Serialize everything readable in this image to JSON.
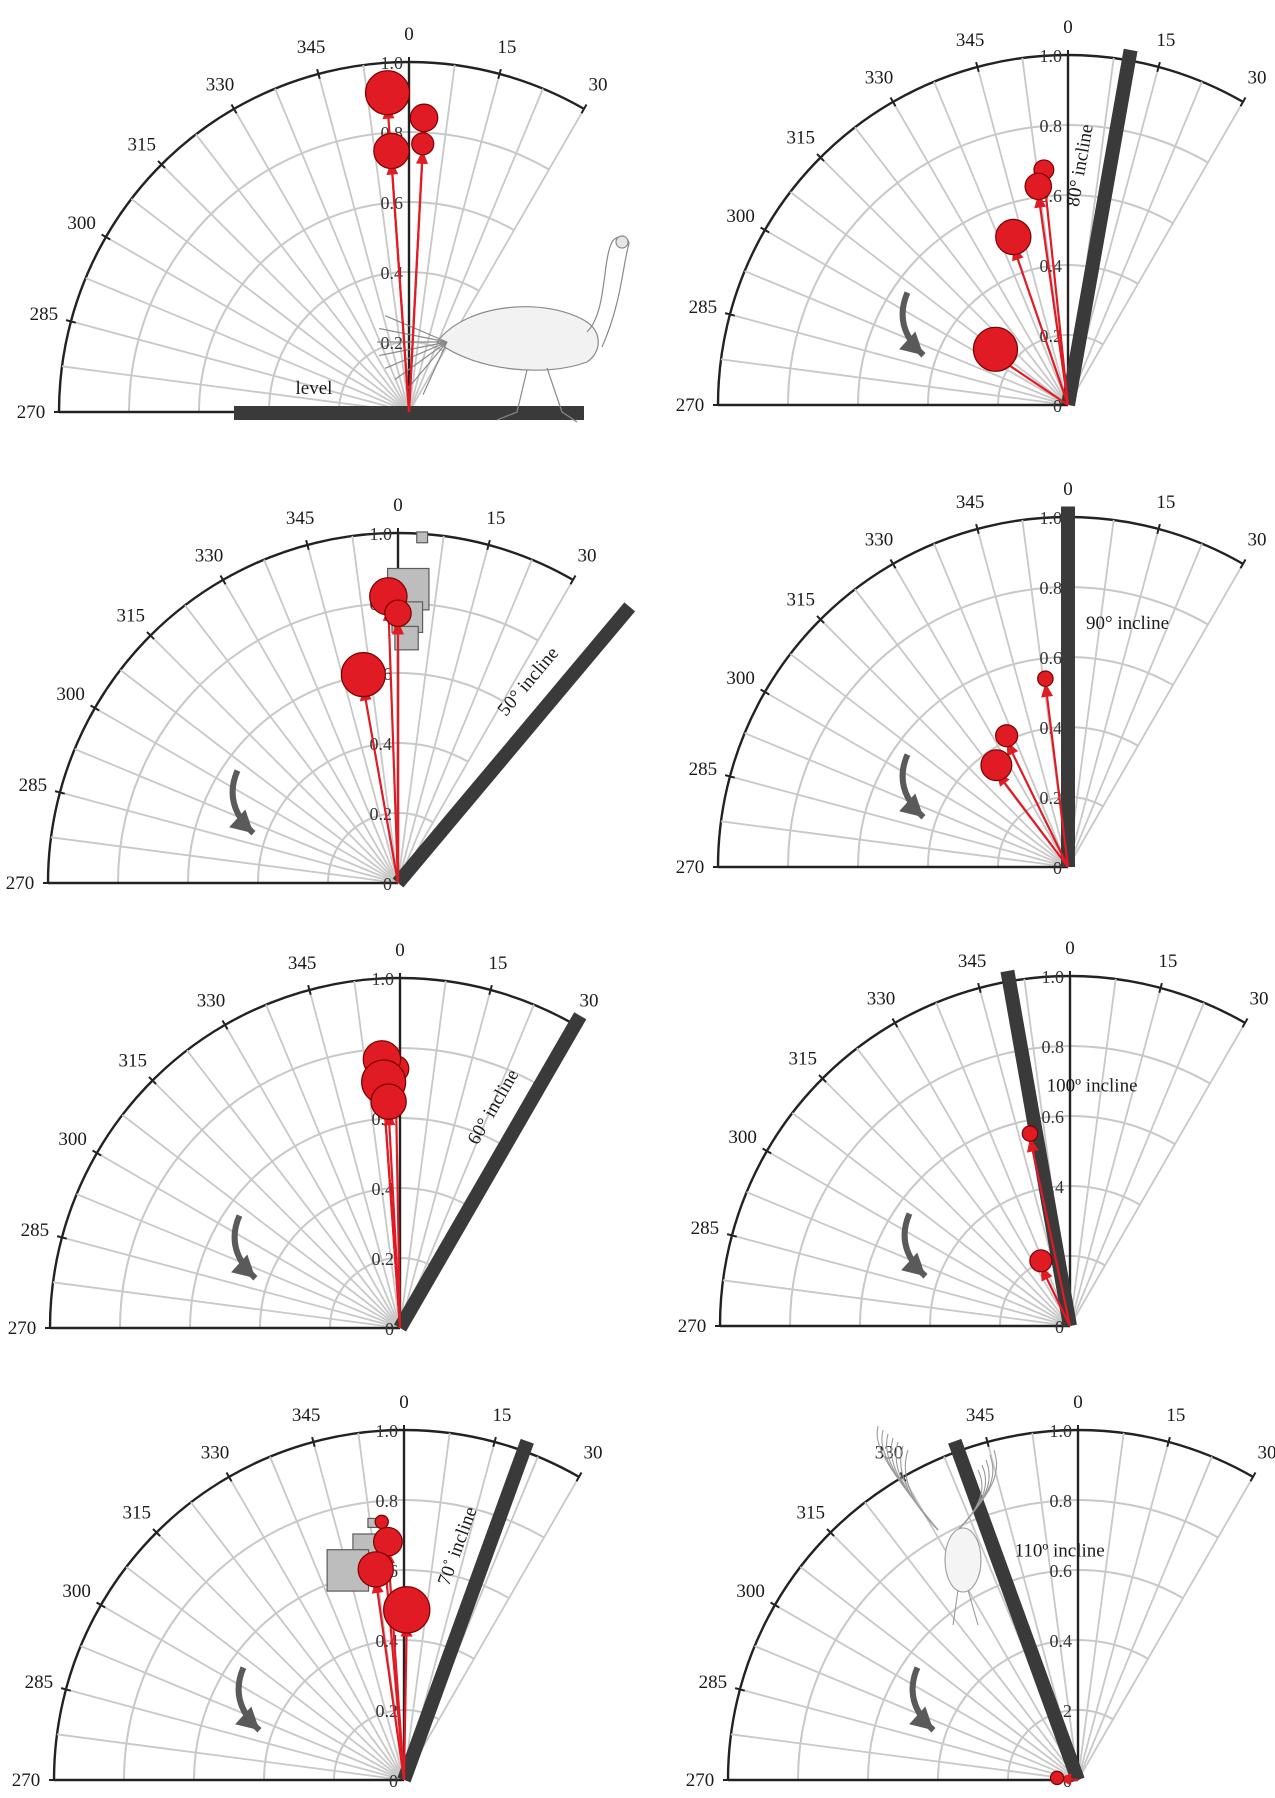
{
  "colors": {
    "vector": "#e01b24",
    "vector_edge": "#7a0000",
    "square": "#bdbdbd",
    "square_edge": "#5c5c5c",
    "surface": "#3a3a3a",
    "grid": "#c8c8c8",
    "frame": "#222222",
    "rotation_arrow": "#5a5a5a"
  },
  "chart_data": [
    {
      "type": "polar",
      "panel": "level",
      "angle_ticks": [
        "270",
        "285",
        "300",
        "315",
        "330",
        "345",
        "0",
        "15",
        "30"
      ],
      "radial_ticks": [
        "0",
        "0.2",
        "0.4",
        "0.6",
        "0.8",
        "1.0"
      ],
      "rlim": [
        0,
        1.0
      ],
      "surface_label": "level",
      "surface_angle": 90,
      "rotation_arrow": false,
      "icon": "turkey-walking-icon",
      "vectors": [
        {
          "angle": 356,
          "magnitude": 0.88,
          "size": 2.0
        },
        {
          "angle": 3,
          "magnitude": 0.82,
          "size": 1.25
        },
        {
          "angle": 356,
          "magnitude": 0.72,
          "size": 1.6
        },
        {
          "angle": 3,
          "magnitude": 0.75,
          "size": 1.0
        }
      ],
      "squares": []
    },
    {
      "type": "polar",
      "panel": "80-incline",
      "angle_ticks": [
        "270",
        "285",
        "300",
        "315",
        "330",
        "345",
        "0",
        "15",
        "30"
      ],
      "radial_ticks": [
        "0",
        "0.2",
        "0.4",
        "0.6",
        "0.8",
        "1.0"
      ],
      "rlim": [
        0,
        1.0
      ],
      "surface_label": "80° incline",
      "surface_angle": 10,
      "rotation_arrow": true,
      "vectors": [
        {
          "angle": 354,
          "magnitude": 0.66,
          "size": 0.9
        },
        {
          "angle": 352,
          "magnitude": 0.61,
          "size": 1.2
        },
        {
          "angle": 341,
          "magnitude": 0.48,
          "size": 1.6
        },
        {
          "angle": 304,
          "magnitude": 0.25,
          "size": 2.0
        }
      ],
      "squares": []
    },
    {
      "type": "polar",
      "panel": "50-incline",
      "angle_ticks": [
        "270",
        "285",
        "300",
        "315",
        "330",
        "345",
        "0",
        "15",
        "30"
      ],
      "radial_ticks": [
        "0",
        "0.2",
        "0.4",
        "0.6",
        "0.8",
        "1.0"
      ],
      "rlim": [
        0,
        1.0
      ],
      "surface_label": "50° incline",
      "surface_angle": 40,
      "rotation_arrow": true,
      "vectors": [
        {
          "angle": 358,
          "magnitude": 0.79,
          "size": 1.7
        },
        {
          "angle": 360,
          "magnitude": 0.75,
          "size": 1.2
        },
        {
          "angle": 350,
          "magnitude": 0.57,
          "size": 2.0
        }
      ],
      "squares": [
        {
          "angle": 4,
          "magnitude": 0.99,
          "size": 0.6
        },
        {
          "angle": 2,
          "magnitude": 0.84,
          "size": 2.3
        },
        {
          "angle": 2,
          "magnitude": 0.76,
          "size": 1.7
        },
        {
          "angle": 2,
          "magnitude": 0.7,
          "size": 1.3
        }
      ]
    },
    {
      "type": "polar",
      "panel": "90-incline",
      "angle_ticks": [
        "270",
        "285",
        "300",
        "315",
        "330",
        "345",
        "0",
        "15",
        "30"
      ],
      "radial_ticks": [
        "0",
        "0.2",
        "0.4",
        "0.6",
        "0.8",
        "1.0"
      ],
      "rlim": [
        0,
        1.0
      ],
      "surface_label": "90° incline",
      "surface_angle": 0,
      "rotation_arrow": true,
      "vectors": [
        {
          "angle": 353,
          "magnitude": 0.53,
          "size": 0.7
        },
        {
          "angle": 334,
          "magnitude": 0.4,
          "size": 1.0
        },
        {
          "angle": 323,
          "magnitude": 0.34,
          "size": 1.4
        }
      ],
      "squares": []
    },
    {
      "type": "polar",
      "panel": "60-incline",
      "angle_ticks": [
        "270",
        "285",
        "300",
        "315",
        "330",
        "345",
        "0",
        "15",
        "30"
      ],
      "radial_ticks": [
        "0",
        "0.2",
        "0.4",
        "0.6",
        "0.8",
        "1.0"
      ],
      "rlim": [
        0,
        1.0
      ],
      "surface_label": "60° incline",
      "surface_angle": 30,
      "rotation_arrow": true,
      "vectors": [
        {
          "angle": 359,
          "magnitude": 0.72,
          "size": 1.2
        },
        {
          "angle": 356,
          "magnitude": 0.74,
          "size": 1.7
        },
        {
          "angle": 356,
          "magnitude": 0.67,
          "size": 2.0
        },
        {
          "angle": 357,
          "magnitude": 0.62,
          "size": 1.6
        }
      ],
      "squares": []
    },
    {
      "type": "polar",
      "panel": "100-incline",
      "angle_ticks": [
        "270",
        "285",
        "300",
        "315",
        "330",
        "345",
        "0",
        "15",
        "30"
      ],
      "radial_ticks": [
        "0",
        "0.2",
        "0.4",
        "0.6",
        "0.8",
        "1.0"
      ],
      "rlim": [
        0,
        1.0
      ],
      "surface_label": "100º incline",
      "surface_angle": 350,
      "rotation_arrow": true,
      "vectors": [
        {
          "angle": 348,
          "magnitude": 0.55,
          "size": 0.7
        },
        {
          "angle": 334,
          "magnitude": 0.19,
          "size": 1.0
        }
      ],
      "squares": []
    },
    {
      "type": "polar",
      "panel": "70-incline",
      "angle_ticks": [
        "270",
        "285",
        "300",
        "315",
        "330",
        "345",
        "0",
        "15",
        "30"
      ],
      "radial_ticks": [
        "0",
        "0.2",
        "0.4",
        "0.6",
        "0.8",
        "1.0"
      ],
      "rlim": [
        0,
        1.0
      ],
      "surface_label": "70˚ incline",
      "surface_angle": 20,
      "rotation_arrow": true,
      "vectors": [
        {
          "angle": 355,
          "magnitude": 0.73,
          "size": 0.6
        },
        {
          "angle": 356,
          "magnitude": 0.66,
          "size": 1.3
        },
        {
          "angle": 352,
          "magnitude": 0.58,
          "size": 1.6
        },
        {
          "angle": 1,
          "magnitude": 0.45,
          "size": 2.1
        }
      ],
      "squares": [
        {
          "angle": 353,
          "magnitude": 0.74,
          "size": 0.5
        },
        {
          "angle": 351,
          "magnitude": 0.67,
          "size": 1.6
        },
        {
          "angle": 345,
          "magnitude": 0.62,
          "size": 2.3
        }
      ]
    },
    {
      "type": "polar",
      "panel": "110-incline",
      "angle_ticks": [
        "270",
        "285",
        "300",
        "315",
        "330",
        "345",
        "0",
        "15",
        "30"
      ],
      "radial_ticks": [
        "0",
        "0.2",
        "0.4",
        "0.6",
        "0.8",
        "1.0"
      ],
      "rlim": [
        0,
        1.0
      ],
      "surface_label": "110º incline",
      "surface_angle": 340,
      "rotation_arrow": true,
      "icon": "bird-flapping-icon",
      "vectors": [
        {
          "angle": 275,
          "magnitude": 0.06,
          "size": 0.6
        }
      ],
      "squares": []
    }
  ]
}
